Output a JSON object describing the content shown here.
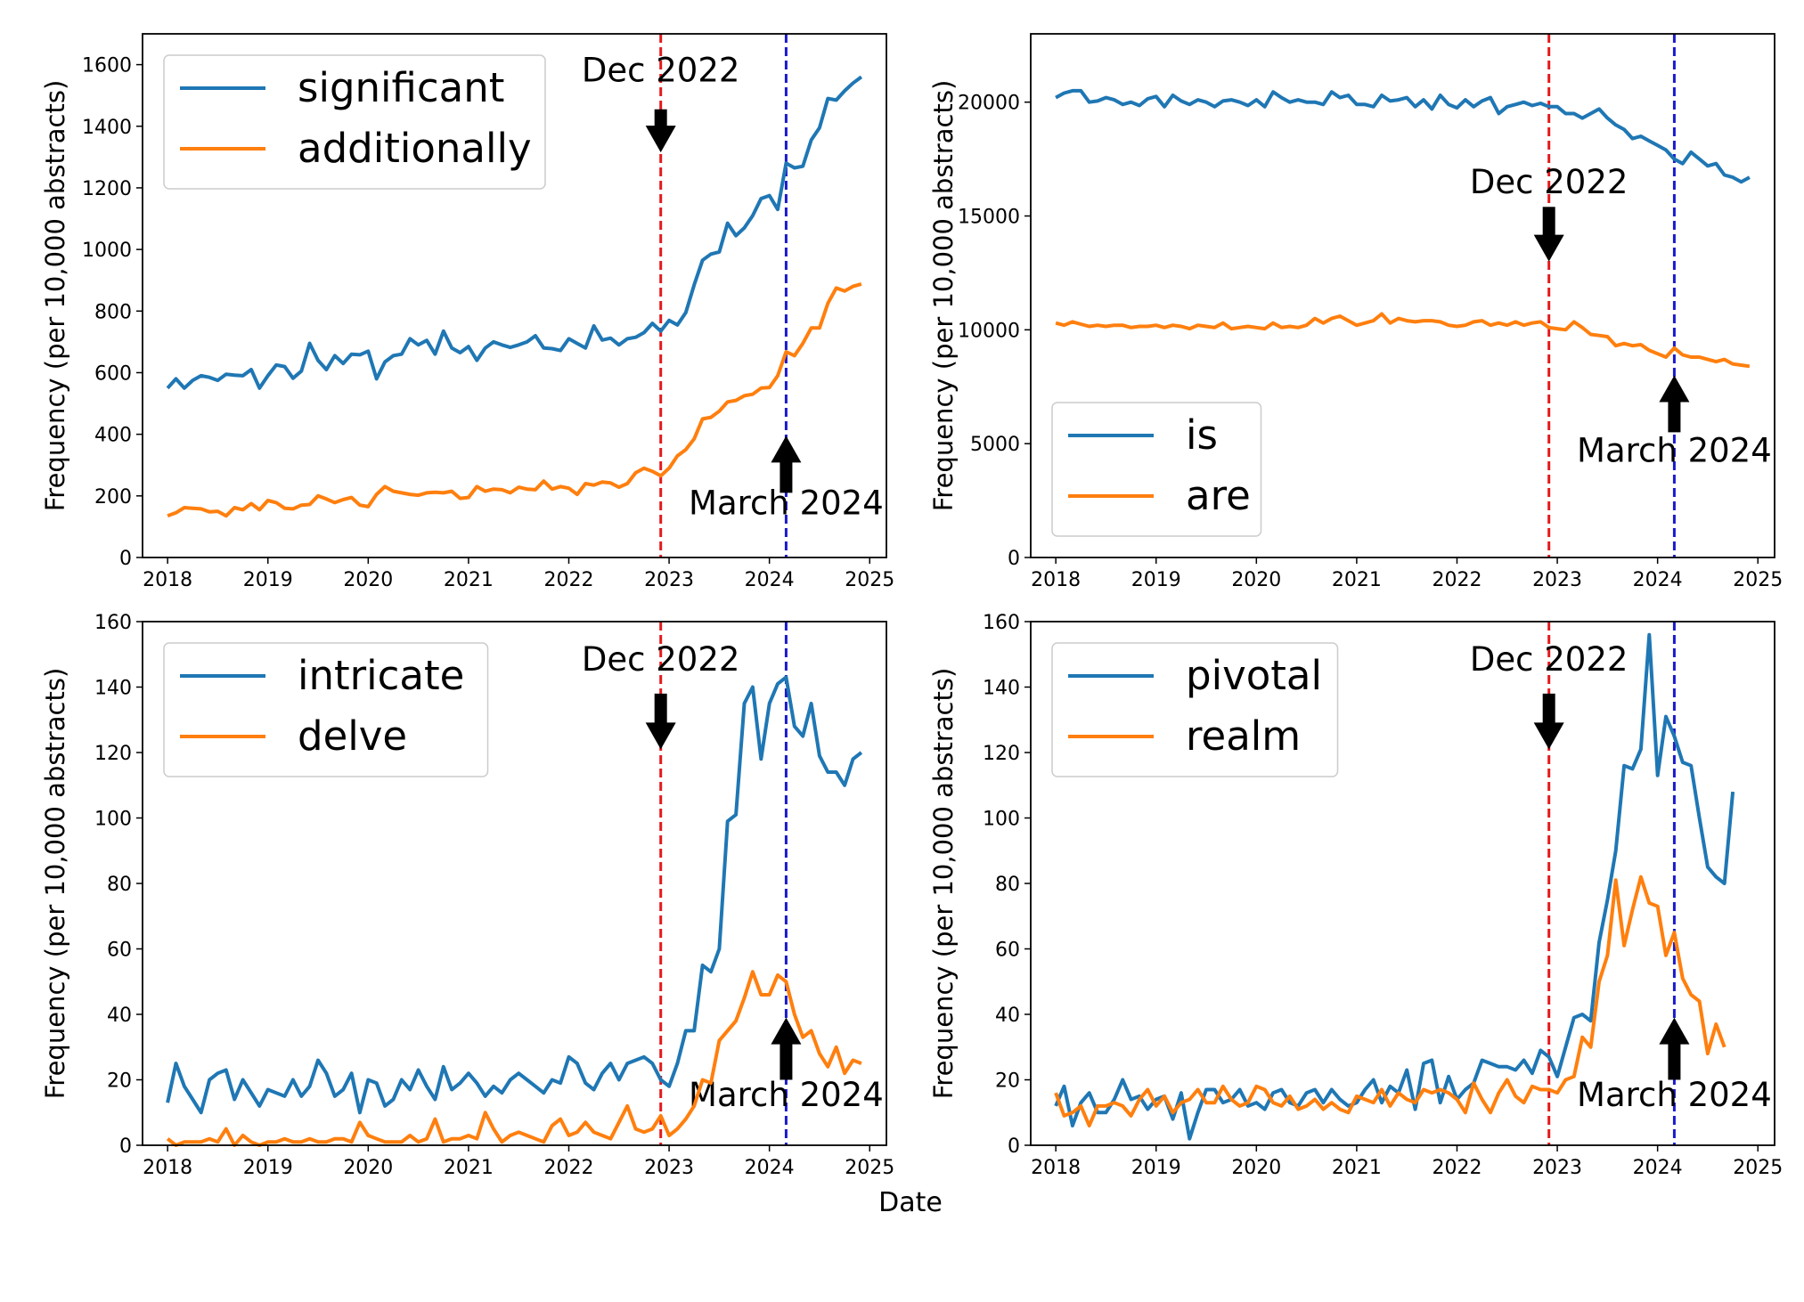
{
  "figure": {
    "xlabel": "Date"
  },
  "colors": {
    "blue": "#1f77b4",
    "orange": "#ff7f0e",
    "dec_line": "#e41a1c",
    "mar_line": "#1a1acc"
  },
  "chart_data": [
    {
      "type": "line",
      "ylabel": "Frequency (per 10,000 abstracts)",
      "ylim": [
        0,
        1700
      ],
      "yticks": [
        "0",
        "200",
        "400",
        "600",
        "800",
        "1000",
        "1200",
        "1400",
        "1600"
      ],
      "ytick_values": [
        0,
        200,
        400,
        600,
        800,
        1000,
        1200,
        1400,
        1600
      ],
      "xlim": [
        "2017-10",
        "2025-03"
      ],
      "xticks": [
        "2018",
        "2019",
        "2020",
        "2021",
        "2022",
        "2023",
        "2024",
        "2025"
      ],
      "legend_loc": "upper left",
      "x_start": "2018-01",
      "series": [
        {
          "name": "significant",
          "color": "blue",
          "values": [
            550,
            580,
            550,
            575,
            590,
            585,
            575,
            595,
            592,
            590,
            610,
            550,
            590,
            625,
            620,
            582,
            605,
            695,
            640,
            610,
            655,
            630,
            660,
            658,
            670,
            580,
            635,
            655,
            660,
            710,
            690,
            705,
            660,
            735,
            680,
            665,
            685,
            640,
            680,
            700,
            690,
            682,
            690,
            700,
            720,
            680,
            678,
            672,
            710,
            695,
            680,
            752,
            706,
            712,
            690,
            710,
            715,
            730,
            760,
            735,
            770,
            755,
            795,
            885,
            965,
            985,
            992,
            1085,
            1045,
            1070,
            1110,
            1165,
            1175,
            1130,
            1280,
            1265,
            1270,
            1355,
            1395,
            1490,
            1485,
            1515,
            1540,
            1560
          ]
        },
        {
          "name": "additionally",
          "color": "orange",
          "values": [
            135,
            145,
            162,
            160,
            158,
            148,
            150,
            135,
            162,
            155,
            175,
            155,
            185,
            178,
            160,
            158,
            170,
            172,
            200,
            190,
            178,
            188,
            195,
            170,
            165,
            205,
            230,
            215,
            210,
            205,
            202,
            210,
            212,
            210,
            215,
            192,
            195,
            230,
            215,
            222,
            220,
            210,
            228,
            222,
            220,
            248,
            222,
            230,
            225,
            205,
            240,
            235,
            245,
            242,
            228,
            240,
            275,
            290,
            280,
            265,
            290,
            330,
            350,
            385,
            450,
            455,
            475,
            505,
            510,
            525,
            530,
            550,
            552,
            590,
            668,
            655,
            695,
            745,
            745,
            825,
            875,
            865,
            880,
            888
          ]
        }
      ],
      "annotations": [
        {
          "text": "Dec 2022",
          "x": "2022-12",
          "line_color": "dec_line",
          "arrow": "down",
          "label_value": 1545,
          "arrow_top": 1455,
          "arrow_bottom": 1315
        },
        {
          "text": "March 2024",
          "x": "2024-03",
          "line_color": "mar_line",
          "arrow": "up",
          "label_value": 140,
          "arrow_top": 395,
          "arrow_bottom": 210
        }
      ]
    },
    {
      "type": "line",
      "ylabel": "Frequency (per 10,000 abstracts)",
      "ylim": [
        0,
        23000
      ],
      "yticks": [
        "0",
        "5000",
        "10000",
        "15000",
        "20000"
      ],
      "ytick_values": [
        0,
        5000,
        10000,
        15000,
        20000
      ],
      "xlim": [
        "2017-10",
        "2025-03"
      ],
      "xticks": [
        "2018",
        "2019",
        "2020",
        "2021",
        "2022",
        "2023",
        "2024",
        "2025"
      ],
      "legend_loc": "lower left",
      "x_start": "2018-01",
      "series": [
        {
          "name": "is",
          "color": "blue",
          "values": [
            20200,
            20400,
            20500,
            20500,
            20000,
            20050,
            20200,
            20100,
            19900,
            20000,
            19850,
            20150,
            20250,
            19800,
            20300,
            20050,
            19900,
            20100,
            20000,
            19800,
            20050,
            20100,
            20000,
            19850,
            20100,
            19800,
            20450,
            20200,
            20000,
            20100,
            20000,
            20000,
            19900,
            20450,
            20200,
            20300,
            19900,
            19900,
            19800,
            20300,
            20050,
            20100,
            20200,
            19800,
            20100,
            19700,
            20300,
            19900,
            19750,
            20100,
            19800,
            20050,
            20200,
            19500,
            19800,
            19900,
            20000,
            19850,
            19950,
            19800,
            19800,
            19500,
            19500,
            19300,
            19500,
            19700,
            19300,
            19000,
            18800,
            18400,
            18500,
            18300,
            18100,
            17900,
            17500,
            17300,
            17800,
            17500,
            17200,
            17300,
            16800,
            16700,
            16500,
            16700
          ]
        },
        {
          "name": "are",
          "color": "orange",
          "values": [
            10300,
            10200,
            10350,
            10250,
            10150,
            10200,
            10150,
            10200,
            10200,
            10100,
            10150,
            10150,
            10200,
            10100,
            10200,
            10150,
            10050,
            10200,
            10150,
            10100,
            10300,
            10050,
            10100,
            10150,
            10100,
            10050,
            10300,
            10100,
            10150,
            10100,
            10200,
            10500,
            10300,
            10500,
            10600,
            10400,
            10200,
            10300,
            10400,
            10700,
            10300,
            10500,
            10400,
            10350,
            10400,
            10400,
            10350,
            10200,
            10150,
            10200,
            10350,
            10400,
            10200,
            10300,
            10200,
            10350,
            10200,
            10300,
            10350,
            10100,
            10050,
            10000,
            10350,
            10100,
            9800,
            9750,
            9700,
            9300,
            9400,
            9300,
            9350,
            9100,
            8950,
            8800,
            9200,
            8900,
            8800,
            8800,
            8700,
            8600,
            8700,
            8500,
            8450,
            8400
          ]
        }
      ],
      "annotations": [
        {
          "text": "Dec 2022",
          "x": "2022-12",
          "line_color": "dec_line",
          "arrow": "down",
          "label_value": 16000,
          "arrow_top": 15400,
          "arrow_bottom": 13000
        },
        {
          "text": "March 2024",
          "x": "2024-03",
          "line_color": "mar_line",
          "arrow": "up",
          "label_value": 4200,
          "arrow_top": 8000,
          "arrow_bottom": 5500
        }
      ]
    },
    {
      "type": "line",
      "ylabel": "Frequency (per 10,000 abstracts)",
      "ylim": [
        0,
        160
      ],
      "yticks": [
        "0",
        "20",
        "40",
        "60",
        "80",
        "100",
        "120",
        "140",
        "160"
      ],
      "ytick_values": [
        0,
        20,
        40,
        60,
        80,
        100,
        120,
        140,
        160
      ],
      "xlim": [
        "2017-10",
        "2025-03"
      ],
      "xticks": [
        "2018",
        "2019",
        "2020",
        "2021",
        "2022",
        "2023",
        "2024",
        "2025"
      ],
      "legend_loc": "upper left",
      "x_start": "2018-01",
      "series": [
        {
          "name": "intricate",
          "color": "blue",
          "values": [
            13,
            25,
            18,
            14,
            10,
            20,
            22,
            23,
            14,
            20,
            16,
            12,
            17,
            16,
            15,
            20,
            15,
            18,
            26,
            22,
            15,
            17,
            22,
            10,
            20,
            19,
            12,
            14,
            20,
            17,
            23,
            18,
            14,
            24,
            17,
            19,
            22,
            19,
            15,
            18,
            16,
            20,
            22,
            20,
            18,
            16,
            20,
            19,
            27,
            25,
            19,
            17,
            22,
            25,
            20,
            25,
            26,
            27,
            25,
            20,
            18,
            25,
            35,
            35,
            55,
            53,
            60,
            99,
            101,
            135,
            140,
            118,
            135,
            141,
            143,
            128,
            125,
            135,
            119,
            114,
            114,
            110,
            118,
            120
          ]
        },
        {
          "name": "delve",
          "color": "orange",
          "values": [
            2,
            0,
            1,
            1,
            1,
            2,
            1,
            5,
            0,
            3,
            1,
            0,
            1,
            1,
            2,
            1,
            1,
            2,
            1,
            1,
            2,
            2,
            1,
            7,
            3,
            2,
            1,
            1,
            1,
            3,
            1,
            2,
            8,
            1,
            2,
            2,
            3,
            2,
            10,
            5,
            1,
            3,
            4,
            3,
            2,
            1,
            6,
            8,
            3,
            4,
            7,
            4,
            3,
            2,
            7,
            12,
            5,
            4,
            5,
            9,
            3,
            5,
            8,
            12,
            20,
            19,
            32,
            35,
            38,
            45,
            53,
            46,
            46,
            52,
            50,
            40,
            33,
            35,
            28,
            24,
            30,
            22,
            26,
            25
          ]
        }
      ],
      "annotations": [
        {
          "text": "Dec 2022",
          "x": "2022-12",
          "line_color": "dec_line",
          "arrow": "down",
          "label_value": 145,
          "arrow_top": 138,
          "arrow_bottom": 121
        },
        {
          "text": "March 2024",
          "x": "2024-03",
          "line_color": "mar_line",
          "arrow": "up",
          "label_value": 12,
          "arrow_top": 39,
          "arrow_bottom": 20
        }
      ]
    },
    {
      "type": "line",
      "ylabel": "Frequency (per 10,000 abstracts)",
      "ylim": [
        0,
        160
      ],
      "yticks": [
        "0",
        "20",
        "40",
        "60",
        "80",
        "100",
        "120",
        "140",
        "160"
      ],
      "ytick_values": [
        0,
        20,
        40,
        60,
        80,
        100,
        120,
        140,
        160
      ],
      "xlim": [
        "2017-10",
        "2025-03"
      ],
      "xticks": [
        "2018",
        "2019",
        "2020",
        "2021",
        "2022",
        "2023",
        "2024",
        "2025"
      ],
      "legend_loc": "upper left",
      "x_start": "2018-01",
      "series": [
        {
          "name": "pivotal",
          "color": "blue",
          "values": [
            12,
            18,
            6,
            13,
            16,
            10,
            10,
            14,
            20,
            14,
            15,
            11,
            14,
            15,
            8,
            16,
            2,
            10,
            17,
            17,
            13,
            14,
            17,
            12,
            13,
            11,
            16,
            17,
            13,
            12,
            16,
            17,
            13,
            17,
            14,
            12,
            13,
            17,
            20,
            13,
            18,
            16,
            23,
            11,
            25,
            26,
            13,
            21,
            14,
            17,
            19,
            26,
            25,
            24,
            24,
            23,
            26,
            22,
            29,
            27,
            21,
            30,
            39,
            40,
            38,
            62,
            75,
            90,
            116,
            115,
            121,
            156,
            113,
            131,
            125,
            117,
            116,
            100,
            85,
            82,
            80,
            108
          ]
        },
        {
          "name": "realm",
          "color": "orange",
          "values": [
            16,
            9,
            10,
            12,
            6,
            12,
            12,
            13,
            12,
            9,
            14,
            17,
            12,
            15,
            10,
            13,
            14,
            17,
            13,
            13,
            18,
            14,
            12,
            13,
            18,
            17,
            13,
            12,
            15,
            11,
            12,
            14,
            11,
            13,
            11,
            10,
            15,
            14,
            13,
            17,
            12,
            16,
            14,
            13,
            17,
            16,
            17,
            16,
            14,
            10,
            19,
            14,
            10,
            16,
            20,
            15,
            13,
            18,
            17,
            17,
            16,
            20,
            21,
            33,
            30,
            50,
            58,
            81,
            61,
            72,
            82,
            74,
            73,
            58,
            65,
            51,
            46,
            44,
            28,
            37,
            30
          ]
        }
      ],
      "annotations": [
        {
          "text": "Dec 2022",
          "x": "2022-12",
          "line_color": "dec_line",
          "arrow": "down",
          "label_value": 145,
          "arrow_top": 138,
          "arrow_bottom": 121
        },
        {
          "text": "March 2024",
          "x": "2024-03",
          "line_color": "mar_line",
          "arrow": "up",
          "label_value": 12,
          "arrow_top": 39,
          "arrow_bottom": 20
        }
      ]
    }
  ]
}
